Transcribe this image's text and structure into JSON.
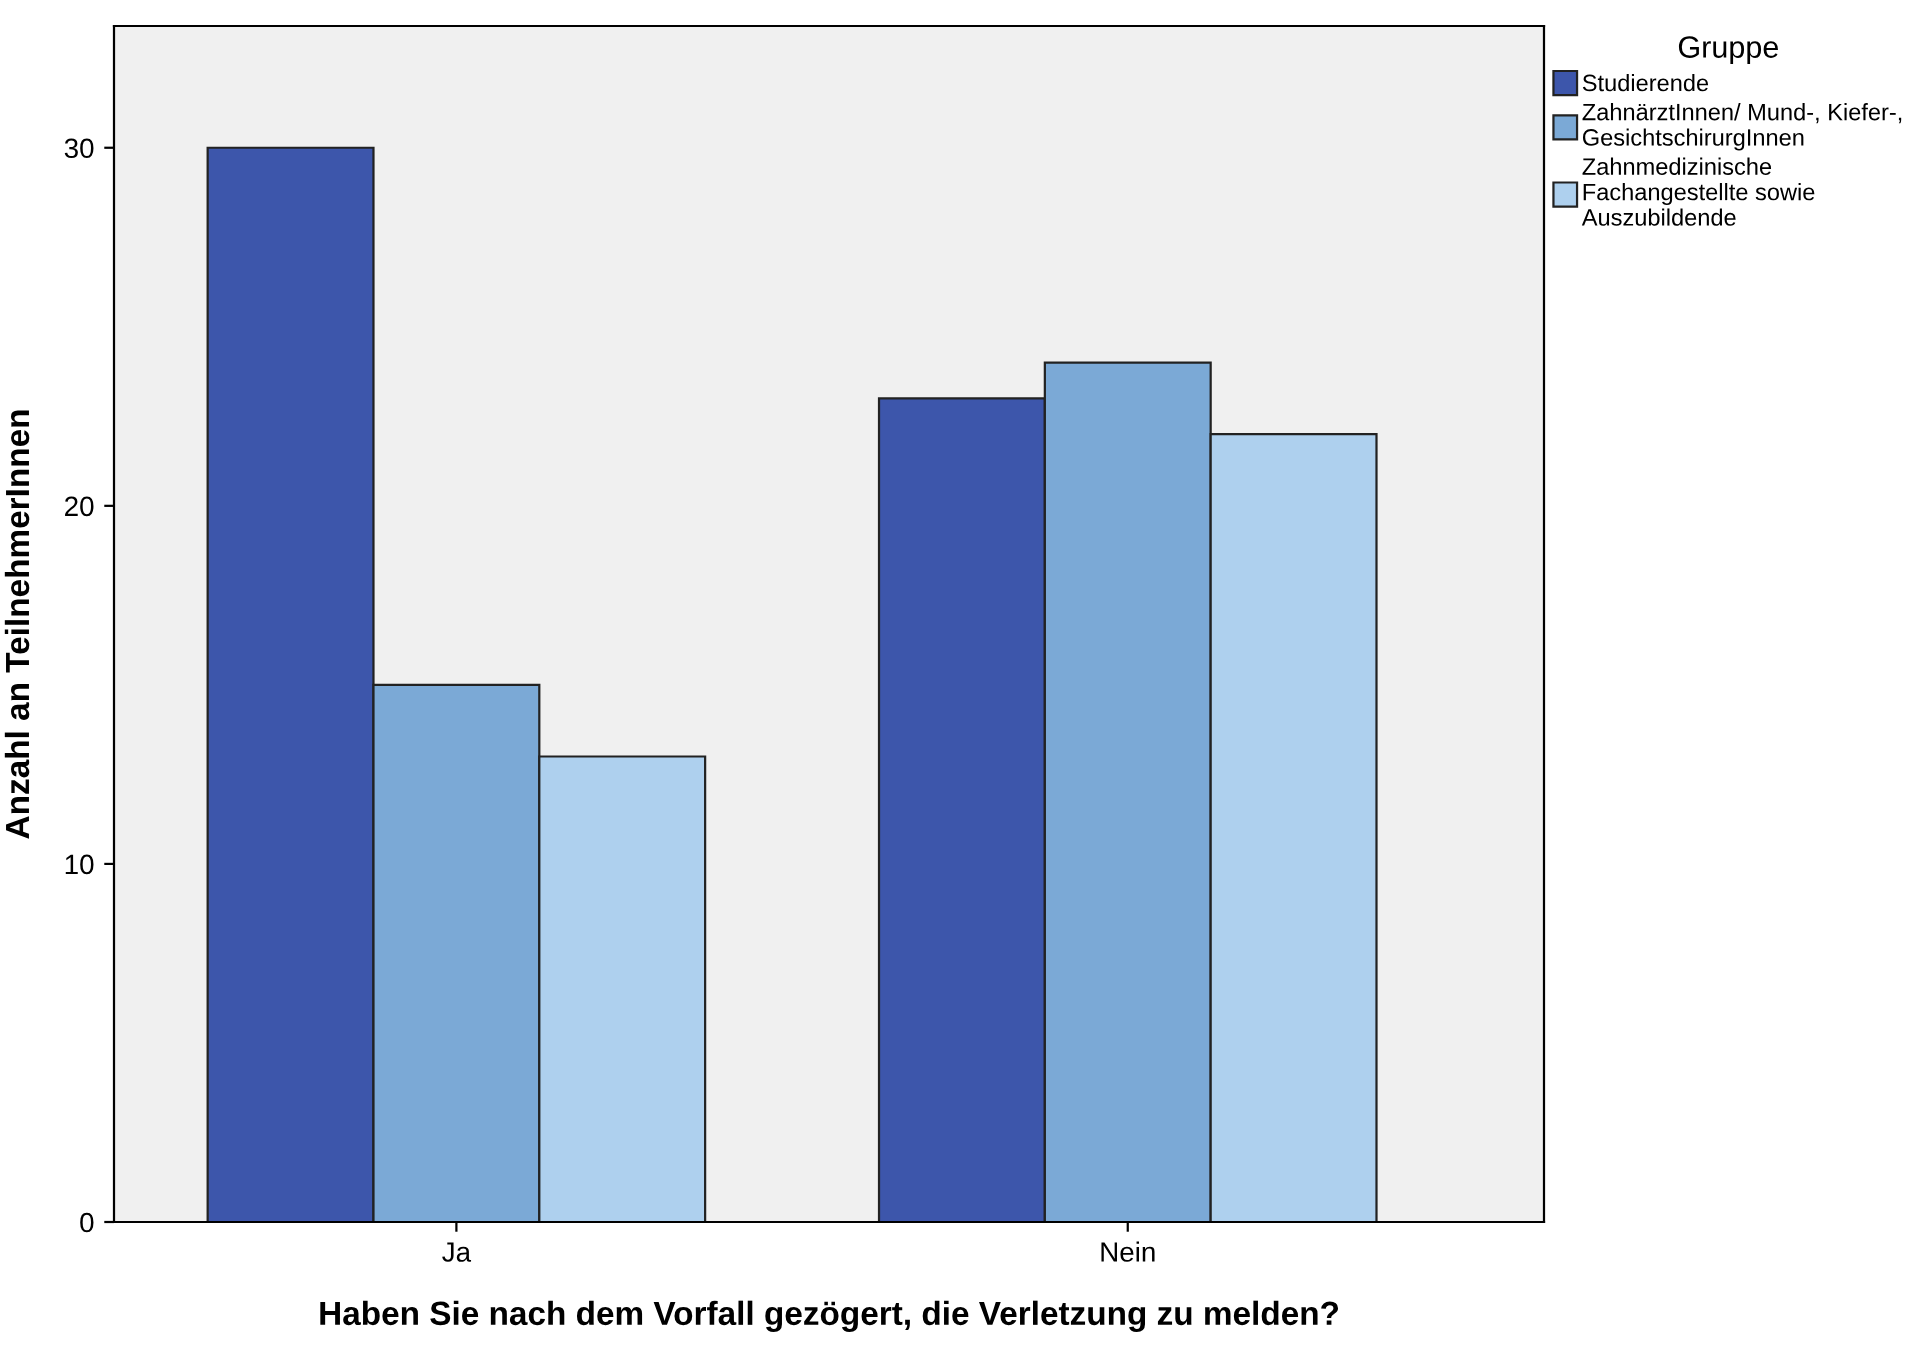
{
  "chart_data": {
    "type": "bar",
    "xlabel": "Haben Sie nach dem Vorfall gezögert, die Verletzung zu melden?",
    "ylabel": "Anzahl an TeilnehmerInnen",
    "legend_title": "Gruppe",
    "categories": [
      "Ja",
      "Nein"
    ],
    "series": [
      {
        "name": "Studierende",
        "color": "#3d56ab",
        "values": [
          30,
          23
        ]
      },
      {
        "name": "ZahnärztInnen/ Mund-, Kiefer-,\nGesichtschirurgInnen",
        "color": "#7ba9d6",
        "values": [
          15,
          24
        ]
      },
      {
        "name": "Zahnmedizinische\nFachangestellte sowie\nAuszubildende",
        "color": "#aed0ee",
        "values": [
          13,
          22
        ]
      }
    ],
    "ylim": [
      0,
      33.4
    ],
    "yticks": [
      0,
      10,
      20,
      30
    ],
    "grid": false,
    "legend": "top right"
  }
}
